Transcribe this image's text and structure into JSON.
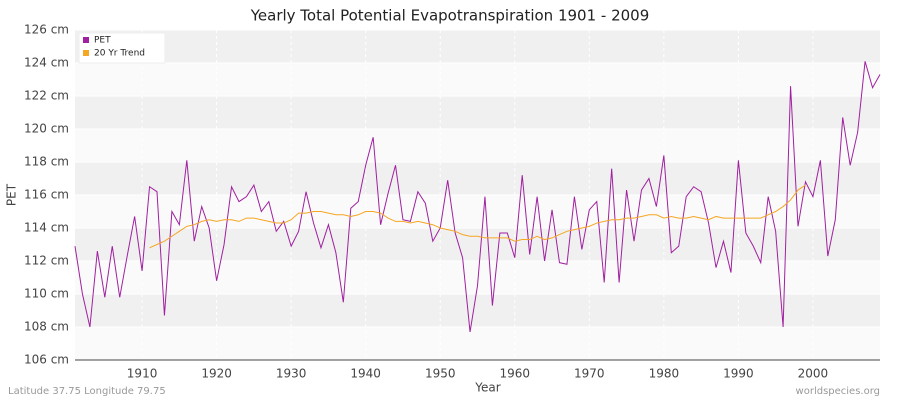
{
  "chart_data": {
    "type": "line",
    "title": "Yearly Total Potential Evapotranspiration 1901 - 2009",
    "xlabel": "Year",
    "ylabel": "PET",
    "footer_left": "Latitude 37.75 Longitude 79.75",
    "footer_right": "worldspecies.org",
    "legend": "upper left",
    "grid": true,
    "x": [
      1901,
      1902,
      1903,
      1904,
      1905,
      1906,
      1907,
      1908,
      1909,
      1910,
      1911,
      1912,
      1913,
      1914,
      1915,
      1916,
      1917,
      1918,
      1919,
      1920,
      1921,
      1922,
      1923,
      1924,
      1925,
      1926,
      1927,
      1928,
      1929,
      1930,
      1931,
      1932,
      1933,
      1934,
      1935,
      1936,
      1937,
      1938,
      1939,
      1940,
      1941,
      1942,
      1943,
      1944,
      1945,
      1946,
      1947,
      1948,
      1949,
      1950,
      1951,
      1952,
      1953,
      1954,
      1955,
      1956,
      1957,
      1958,
      1959,
      1960,
      1961,
      1962,
      1963,
      1964,
      1965,
      1966,
      1967,
      1968,
      1969,
      1970,
      1971,
      1972,
      1973,
      1974,
      1975,
      1976,
      1977,
      1978,
      1979,
      1980,
      1981,
      1982,
      1983,
      1984,
      1985,
      1986,
      1987,
      1988,
      1989,
      1990,
      1991,
      1992,
      1993,
      1994,
      1995,
      1996,
      1997,
      1998,
      1999,
      2000,
      2001,
      2002,
      2003,
      2004,
      2005,
      2006,
      2007,
      2008,
      2009
    ],
    "series": [
      {
        "name": "PET",
        "color": "#a020a0",
        "values": [
          112.9,
          110.0,
          108.0,
          112.6,
          109.8,
          112.9,
          109.8,
          112.3,
          114.7,
          111.4,
          116.5,
          116.2,
          108.7,
          115.0,
          114.2,
          118.1,
          113.2,
          115.3,
          114.0,
          110.8,
          113.0,
          116.5,
          115.6,
          115.9,
          116.6,
          115.0,
          115.6,
          113.8,
          114.4,
          112.9,
          113.8,
          116.2,
          114.3,
          112.8,
          114.2,
          112.5,
          109.5,
          115.2,
          115.6,
          117.8,
          119.5,
          114.2,
          116.1,
          117.8,
          114.5,
          114.4,
          116.2,
          115.5,
          113.2,
          114.0,
          116.9,
          113.7,
          112.2,
          107.7,
          110.5,
          115.9,
          109.3,
          113.7,
          113.7,
          112.2,
          117.2,
          112.4,
          115.9,
          112.0,
          115.1,
          111.9,
          111.8,
          115.9,
          112.7,
          115.1,
          115.6,
          110.7,
          117.6,
          110.7,
          116.3,
          113.2,
          116.3,
          117.0,
          115.3,
          118.4,
          112.5,
          112.9,
          115.9,
          116.5,
          116.2,
          114.3,
          111.6,
          113.2,
          111.3,
          118.1,
          113.7,
          112.9,
          111.9,
          115.9,
          113.8,
          108.0,
          122.6,
          114.1,
          116.8,
          115.9,
          118.1,
          112.3,
          114.5,
          120.7,
          117.8,
          119.8,
          124.1,
          122.5,
          123.3
        ]
      },
      {
        "name": "20 Yr Trend",
        "color": "#f5a623",
        "values": [
          null,
          null,
          null,
          null,
          null,
          null,
          null,
          null,
          null,
          null,
          112.8,
          113.0,
          113.2,
          113.5,
          113.8,
          114.1,
          114.2,
          114.4,
          114.5,
          114.4,
          114.5,
          114.5,
          114.4,
          114.6,
          114.6,
          114.5,
          114.4,
          114.3,
          114.3,
          114.5,
          114.9,
          114.9,
          115.0,
          115.0,
          114.9,
          114.8,
          114.8,
          114.7,
          114.8,
          115.0,
          115.0,
          114.9,
          114.6,
          114.4,
          114.4,
          114.3,
          114.4,
          114.3,
          114.2,
          114.0,
          113.9,
          113.8,
          113.6,
          113.5,
          113.5,
          113.4,
          113.4,
          113.4,
          113.4,
          113.2,
          113.3,
          113.3,
          113.5,
          113.3,
          113.4,
          113.6,
          113.8,
          113.9,
          114.0,
          114.1,
          114.3,
          114.4,
          114.5,
          114.5,
          114.6,
          114.6,
          114.7,
          114.8,
          114.8,
          114.6,
          114.7,
          114.6,
          114.6,
          114.7,
          114.6,
          114.5,
          114.7,
          114.6,
          114.6,
          114.6,
          114.6,
          114.6,
          114.6,
          114.8,
          115.0,
          115.3,
          115.7,
          116.3,
          116.6,
          null,
          null,
          null,
          null,
          null,
          null,
          null,
          null,
          null,
          null
        ]
      }
    ],
    "xlim": [
      1901,
      2009
    ],
    "xticks": [
      1910,
      1920,
      1930,
      1940,
      1950,
      1960,
      1970,
      1980,
      1990,
      2000
    ],
    "ylim": [
      106,
      126
    ],
    "yticks": [
      {
        "value": 106,
        "label": "106 cm"
      },
      {
        "value": 108,
        "label": "108 cm"
      },
      {
        "value": 110,
        "label": "110 cm"
      },
      {
        "value": 112,
        "label": "112 cm"
      },
      {
        "value": 114,
        "label": "114 cm"
      },
      {
        "value": 116,
        "label": "116 cm"
      },
      {
        "value": 118,
        "label": "118 cm"
      },
      {
        "value": 120,
        "label": "120 cm"
      },
      {
        "value": 122,
        "label": "122 cm"
      },
      {
        "value": 124,
        "label": "124 cm"
      },
      {
        "value": 126,
        "label": "126 cm"
      }
    ]
  }
}
